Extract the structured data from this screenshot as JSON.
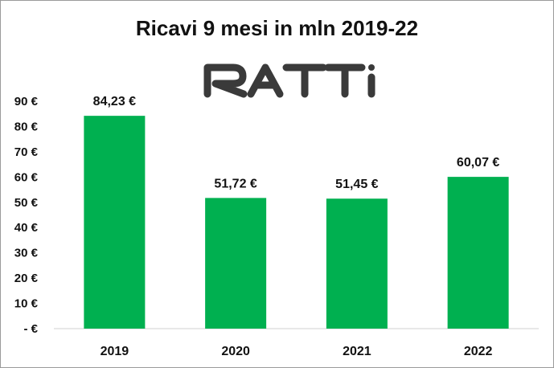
{
  "chart_data": {
    "type": "bar",
    "title": "Ricavi 9 mesi in mln 2019-22",
    "categories": [
      "2019",
      "2020",
      "2021",
      "2022"
    ],
    "values": [
      84.23,
      51.72,
      51.45,
      60.07
    ],
    "data_labels": [
      "84,23 €",
      "51,72 €",
      "51,45 €",
      "60,07 €"
    ],
    "y_ticks": [
      {
        "value": 0,
        "label": "- €"
      },
      {
        "value": 10,
        "label": "10 €"
      },
      {
        "value": 20,
        "label": "20 €"
      },
      {
        "value": 30,
        "label": "30 €"
      },
      {
        "value": 40,
        "label": "40 €"
      },
      {
        "value": 50,
        "label": "50 €"
      },
      {
        "value": 60,
        "label": "60 €"
      },
      {
        "value": 70,
        "label": "70 €"
      },
      {
        "value": 80,
        "label": "80 €"
      },
      {
        "value": 90,
        "label": "90 €"
      }
    ],
    "ylim": [
      0,
      90
    ],
    "xlabel": "",
    "ylabel": "",
    "grid": false,
    "legend": "none",
    "bar_color": "#00b050"
  },
  "logo": {
    "text": "RATTI",
    "color": "#3a3a3a"
  }
}
